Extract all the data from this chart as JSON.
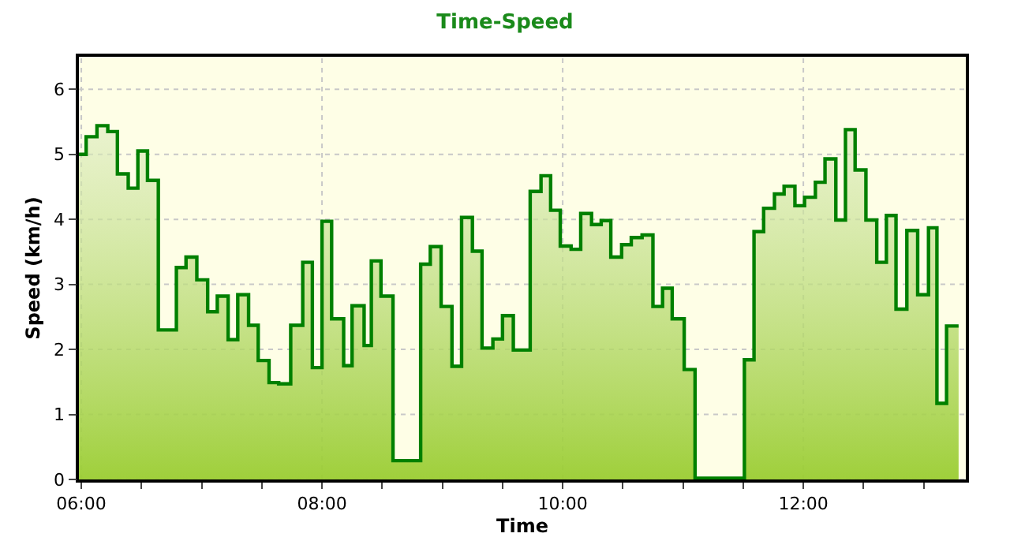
{
  "chart_data": {
    "type": "step",
    "title": "Time-Speed",
    "xlabel": "Time",
    "ylabel": "Speed (km/h)",
    "x": [
      5.98,
      6.04,
      6.13,
      6.22,
      6.3,
      6.39,
      6.47,
      6.55,
      6.64,
      6.79,
      6.87,
      6.96,
      7.05,
      7.13,
      7.22,
      7.3,
      7.39,
      7.47,
      7.56,
      7.64,
      7.74,
      7.84,
      7.92,
      8.0,
      8.08,
      8.18,
      8.25,
      8.35,
      8.41,
      8.49,
      8.59,
      8.82,
      8.9,
      8.99,
      9.08,
      9.16,
      9.25,
      9.33,
      9.42,
      9.5,
      9.59,
      9.73,
      9.82,
      9.9,
      9.98,
      10.07,
      10.15,
      10.24,
      10.32,
      10.4,
      10.49,
      10.57,
      10.66,
      10.75,
      10.83,
      10.91,
      11.01,
      11.1,
      11.51,
      11.59,
      11.67,
      11.76,
      11.84,
      11.93,
      12.01,
      12.1,
      12.18,
      12.27,
      12.35,
      12.43,
      12.52,
      12.61,
      12.69,
      12.77,
      12.86,
      12.95,
      13.04,
      13.11,
      13.19,
      13.29
    ],
    "series": [
      {
        "color": "#008000",
        "values": [
          5.0,
          5.27,
          5.44,
          5.35,
          4.7,
          4.48,
          5.05,
          4.6,
          2.3,
          3.26,
          3.42,
          3.07,
          2.58,
          2.82,
          2.15,
          2.84,
          2.37,
          1.83,
          1.49,
          1.47,
          2.37,
          3.34,
          1.72,
          3.97,
          2.47,
          1.75,
          2.67,
          2.06,
          3.36,
          2.82,
          0.29,
          3.31,
          3.58,
          2.66,
          1.74,
          4.03,
          3.51,
          2.02,
          2.16,
          2.52,
          1.99,
          4.43,
          4.67,
          4.14,
          3.59,
          3.54,
          4.09,
          3.92,
          3.98,
          3.42,
          3.61,
          3.72,
          3.76,
          2.66,
          2.94,
          2.47,
          1.69,
          0.02,
          1.84,
          3.81,
          4.17,
          4.39,
          4.51,
          4.21,
          4.34,
          4.57,
          4.93,
          3.99,
          5.38,
          4.76,
          3.99,
          3.34,
          4.06,
          2.62,
          3.83,
          2.84,
          3.87,
          1.17,
          2.36,
          2.36
        ]
      }
    ],
    "xlim": [
      5.98,
      13.35
    ],
    "ylim": [
      0,
      6.5
    ],
    "xticks": [
      {
        "value": 6,
        "label": "06:00"
      },
      {
        "value": 6.5,
        "label": null
      },
      {
        "value": 7,
        "label": null
      },
      {
        "value": 7.5,
        "label": null
      },
      {
        "value": 8,
        "label": "08:00"
      },
      {
        "value": 8.5,
        "label": null
      },
      {
        "value": 9,
        "label": null
      },
      {
        "value": 9.5,
        "label": null
      },
      {
        "value": 10,
        "label": "10:00"
      },
      {
        "value": 10.5,
        "label": null
      },
      {
        "value": 11,
        "label": null
      },
      {
        "value": 11.5,
        "label": null
      },
      {
        "value": 12,
        "label": "12:00"
      },
      {
        "value": 12.5,
        "label": null
      },
      {
        "value": 13,
        "label": null
      }
    ],
    "yticks": [
      0,
      1,
      2,
      3,
      4,
      5,
      6
    ],
    "grid": true,
    "line_style": "solid",
    "marker": "none"
  }
}
